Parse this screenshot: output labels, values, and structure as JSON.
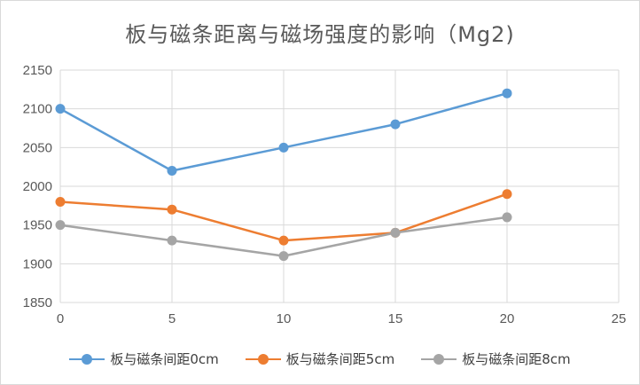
{
  "chart_data": {
    "type": "line",
    "title": "板与磁条距离与磁场强度的影响（Mg2)",
    "xlim": [
      0,
      25
    ],
    "ylim": [
      1850,
      2150
    ],
    "x_ticks": [
      "0",
      "5",
      "10",
      "15",
      "20",
      "25"
    ],
    "y_ticks": [
      "2150",
      "2100",
      "2050",
      "2000",
      "1950",
      "1900",
      "1850"
    ],
    "grid": "horizontal",
    "legend_position": "bottom",
    "series": [
      {
        "name": "板与磁条间距0cm",
        "color": "#5b9bd5",
        "x": [
          0,
          5,
          10,
          15,
          20
        ],
        "values": [
          2100,
          2020,
          2050,
          2080,
          2120
        ]
      },
      {
        "name": "板与磁条间距5cm",
        "color": "#ed7d31",
        "x": [
          0,
          5,
          10,
          15,
          20
        ],
        "values": [
          1980,
          1970,
          1930,
          1940,
          1990
        ]
      },
      {
        "name": "板与磁条间距8cm",
        "color": "#a5a5a5",
        "x": [
          0,
          5,
          10,
          15,
          20
        ],
        "values": [
          1950,
          1930,
          1910,
          1940,
          1960
        ]
      }
    ]
  }
}
